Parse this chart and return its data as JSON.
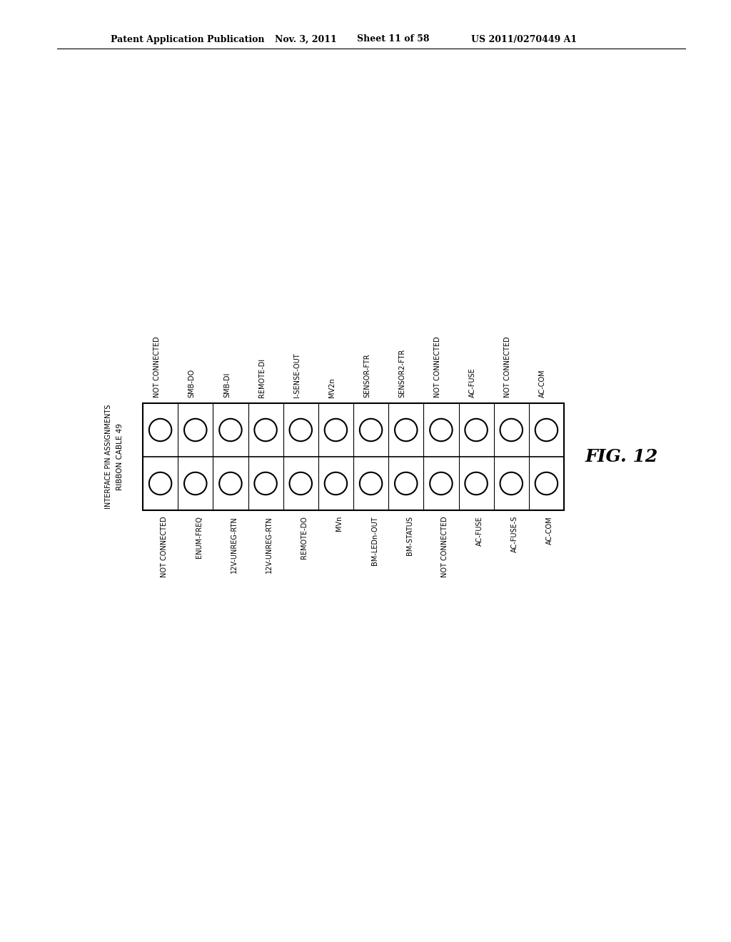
{
  "title_line1": "RIBBON CABLE 49",
  "title_line2": "INTERFACE PIN ASSIGNMENTS",
  "fig_label": "FIG. 12",
  "header_text": "Patent Application Publication",
  "header_date": "Nov. 3, 2011",
  "header_sheet": "Sheet 11 of 58",
  "header_patent": "US 2011/0270449 A1",
  "top_labels": [
    "NOT CONNECTED",
    "SMB-DO",
    "SMB-DI",
    "REMOTE-DI",
    "I-SENSE-OUT",
    "MV2n",
    "SENSOR-FTR",
    "SENSOR2-FTR",
    "NOT CONNECTED",
    "AC-FUSE",
    "NOT CONNECTED",
    "AC-COM"
  ],
  "bottom_labels": [
    "NOT CONNECTED",
    "ENUM-FREQ",
    "12V-UNREG-RTN",
    "12V-UNREG-RTN",
    "REMOTE-DO",
    "MVn",
    "BM-LEDn-OUT",
    "BM-STATUS",
    "NOT CONNECTED",
    "AC-FUSE",
    "AC-FUSE-S",
    "AC-COM"
  ],
  "n_pins": 12,
  "background_color": "#ffffff",
  "text_color": "#000000",
  "line_color": "#000000"
}
